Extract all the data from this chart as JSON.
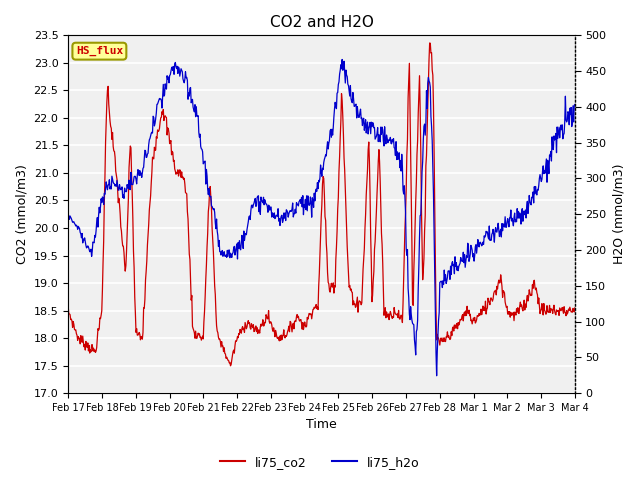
{
  "title": "CO2 and H2O",
  "xlabel": "Time",
  "ylabel_left": "CO2 (mmol/m3)",
  "ylabel_right": "H2O (mmol/m3)",
  "ylim_left": [
    17.0,
    23.5
  ],
  "ylim_right": [
    0,
    500
  ],
  "yticks_left": [
    17.0,
    17.5,
    18.0,
    18.5,
    19.0,
    19.5,
    20.0,
    20.5,
    21.0,
    21.5,
    22.0,
    22.5,
    23.0,
    23.5
  ],
  "yticks_right": [
    0,
    50,
    100,
    150,
    200,
    250,
    300,
    350,
    400,
    450,
    500
  ],
  "xtick_labels": [
    "Feb 17",
    "Feb 18",
    "Feb 19",
    "Feb 20",
    "Feb 21",
    "Feb 22",
    "Feb 23",
    "Feb 24",
    "Feb 25",
    "Feb 26",
    "Feb 27",
    "Feb 28",
    "Mar 1",
    "Mar 2",
    "Mar 3",
    "Mar 4"
  ],
  "color_co2": "#cc0000",
  "color_h2o": "#0000cc",
  "label_co2": "li75_co2",
  "label_h2o": "li75_h2o",
  "plot_bg": "#f0f0f0",
  "annotation_text": "HS_flux",
  "annotation_bg": "#ffff99",
  "annotation_border": "#999900"
}
